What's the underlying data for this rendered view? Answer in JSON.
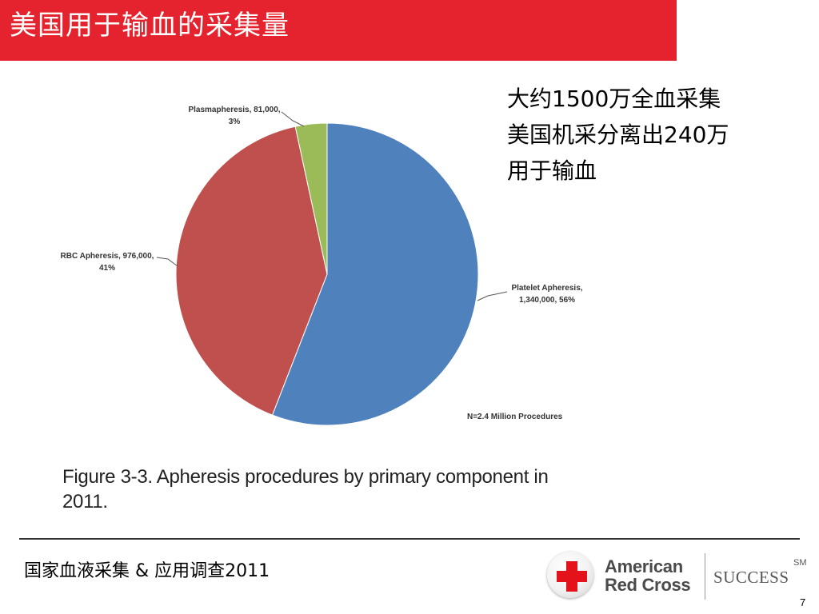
{
  "slide": {
    "title": "美国用于输血的采集量",
    "side_lines": [
      "大约1500万全血采集",
      "美国机采分离出240万",
      "用于输血"
    ],
    "caption_line1": "Figure 3-3. Apheresis procedures by primary component in",
    "caption_line2": "2011.",
    "footer": "国家血液采集 & 应用调查2011",
    "page_number": "7"
  },
  "logo": {
    "line1": "American",
    "line2": "Red Cross",
    "success": "SUCCESS",
    "sm": "SM"
  },
  "colors": {
    "title_bar": "#e5232e",
    "platelet": "#4f81bd",
    "rbc": "#c0504d",
    "plasma": "#9bbb59"
  },
  "chart_data": {
    "type": "pie",
    "slices": [
      {
        "label_line1": "Platelet Apheresis,",
        "label_line2": "1,340,000, 56%",
        "value": 1340000,
        "percent": 56,
        "color": "#4f81bd"
      },
      {
        "label_line1": "RBC Apheresis, 976,000,",
        "label_line2": "41%",
        "value": 976000,
        "percent": 41,
        "color": "#c0504d"
      },
      {
        "label_line1": "Plasmapheresis, 81,000,",
        "label_line2": "3%",
        "value": 81000,
        "percent": 3,
        "color": "#9bbb59"
      }
    ],
    "note": "N=2.4 Million Procedures"
  }
}
